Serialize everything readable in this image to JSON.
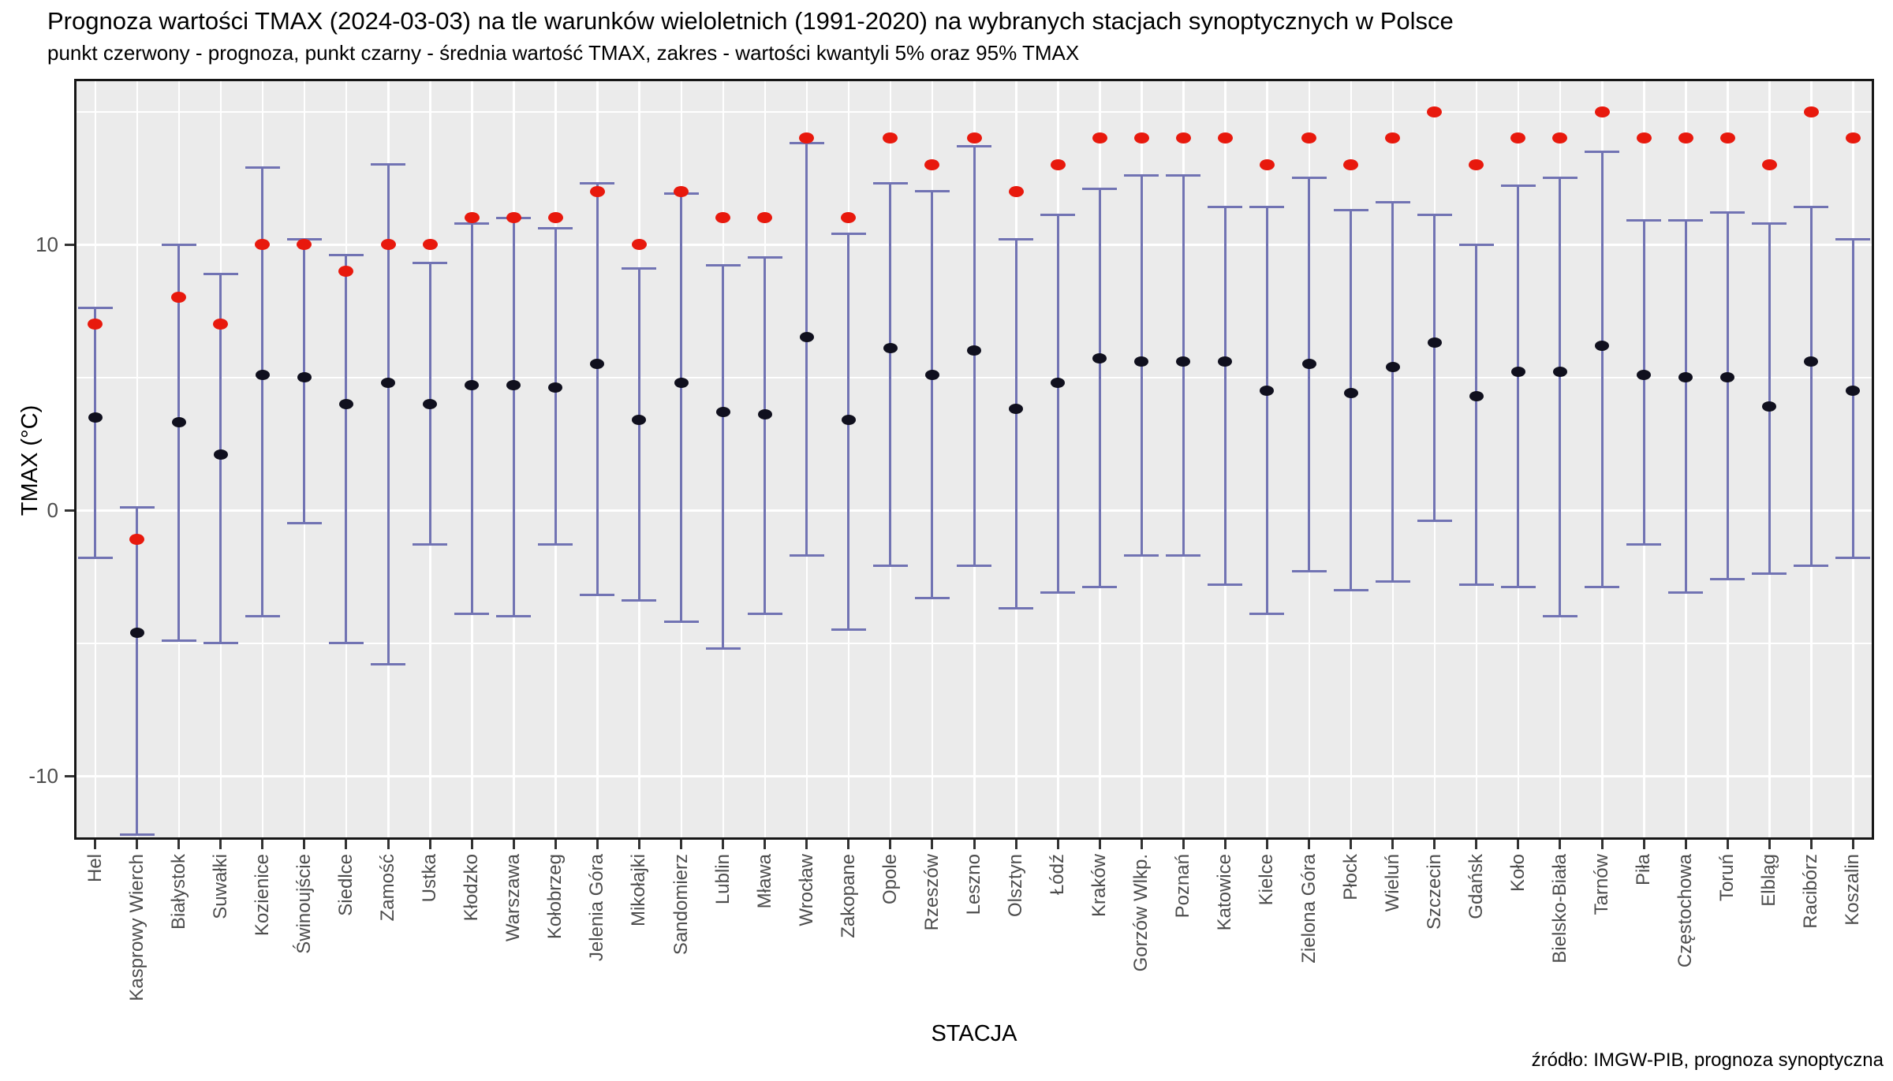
{
  "chart_data": {
    "type": "scatter",
    "variant": "point-range (forecast dot, mean dot, 5%-95% quantile errorbar)",
    "title": "Prognoza wartości TMAX (2024-03-03) na tle warunków wieloletnich (1991-2020) na wybranych stacjach synoptycznych w Polsce",
    "subtitle": "punkt czerwony - prognoza, punkt czarny - średnia wartość TMAX, zakres - wartości kwantyli 5% oraz 95% TMAX",
    "xlabel": "STACJA",
    "ylabel": "TMAX (°C)",
    "caption": "źródło: IMGW-PIB, prognoza synoptyczna",
    "ylim": [
      -13.6,
      16.1
    ],
    "yticks_major": [
      10,
      0,
      -10
    ],
    "yticks_minor": [
      15,
      5,
      -5
    ],
    "grid": "white major+minor horizontal lines and vertical line per station on gray panel",
    "legend_position": "none (legend explained in subtitle)",
    "colors": {
      "forecast_point": "#e8190d",
      "mean_point": "#10101e",
      "range_bar": "#7173b3",
      "panel_background": "#ebebeb",
      "gridline": "#ffffff",
      "tick_label": "#4d4d4d",
      "panel_border": "#161616"
    },
    "categories": [
      "Hel",
      "Kasprowy Wierch",
      "Białystok",
      "Suwałki",
      "Kozienice",
      "Świnoujście",
      "Siedlce",
      "Zamość",
      "Ustka",
      "Kłodzko",
      "Warszawa",
      "Kołobrzeg",
      "Jelenia Góra",
      "Mikołajki",
      "Sandomierz",
      "Lublin",
      "Mława",
      "Wrocław",
      "Zakopane",
      "Opole",
      "Rzeszów",
      "Leszno",
      "Olsztyn",
      "Łódź",
      "Kraków",
      "Gorzów Wlkp.",
      "Poznań",
      "Katowice",
      "Kielce",
      "Zielona Góra",
      "Płock",
      "Wieluń",
      "Szczecin",
      "Gdańsk",
      "Koło",
      "Bielsko-Biała",
      "Tarnów",
      "Piła",
      "Częstochowa",
      "Toruń",
      "Elbląg",
      "Racibórz",
      "Koszalin"
    ],
    "series": [
      {
        "name": "prognoza (punkt czerwony)",
        "role": "forecast",
        "values": [
          7.0,
          -1.1,
          8.0,
          7.0,
          10.0,
          10.0,
          9.0,
          10.0,
          10.0,
          11.0,
          11.0,
          11.0,
          12.0,
          10.0,
          12.0,
          11.0,
          11.0,
          14.0,
          11.0,
          14.0,
          13.0,
          14.0,
          12.0,
          13.0,
          14.0,
          14.0,
          14.0,
          14.0,
          13.0,
          14.0,
          13.0,
          14.0,
          15.0,
          13.0,
          14.0,
          14.0,
          15.0,
          14.0,
          14.0,
          14.0,
          13.0,
          15.0,
          14.0
        ]
      },
      {
        "name": "średnia wartość TMAX (punkt czarny)",
        "role": "mean",
        "values": [
          3.5,
          -4.6,
          3.3,
          2.1,
          5.1,
          5.0,
          4.0,
          4.8,
          4.0,
          4.7,
          4.7,
          4.6,
          5.5,
          3.4,
          4.8,
          3.7,
          3.6,
          6.5,
          3.4,
          6.1,
          5.1,
          6.0,
          3.8,
          4.8,
          5.7,
          5.6,
          5.6,
          5.6,
          4.5,
          5.5,
          4.4,
          5.4,
          6.3,
          4.3,
          5.2,
          5.2,
          6.2,
          5.1,
          5.0,
          5.0,
          3.9,
          5.6,
          4.5
        ]
      },
      {
        "name": "kwantyl 5% TMAX (dolny zakres)",
        "role": "range_low",
        "values": [
          -1.8,
          -12.2,
          -4.9,
          -5.0,
          -4.0,
          -0.5,
          -5.0,
          -5.8,
          -1.3,
          -3.9,
          -4.0,
          -1.3,
          -3.2,
          -3.4,
          -4.2,
          -5.2,
          -3.9,
          -1.7,
          -4.5,
          -2.1,
          -3.3,
          -2.1,
          -3.7,
          -3.1,
          -2.9,
          -1.7,
          -1.7,
          -2.8,
          -3.9,
          -2.3,
          -3.0,
          -2.7,
          -0.4,
          -2.8,
          -2.9,
          -4.0,
          -2.9,
          -1.3,
          -3.1,
          -2.6,
          -2.4,
          -2.1,
          -1.8
        ]
      },
      {
        "name": "kwantyl 95% TMAX (górny zakres)",
        "role": "range_high",
        "values": [
          7.6,
          0.1,
          10.0,
          8.9,
          12.9,
          10.2,
          9.6,
          13.0,
          9.3,
          10.8,
          11.0,
          10.6,
          12.3,
          9.1,
          11.9,
          9.2,
          9.5,
          13.8,
          10.4,
          12.3,
          12.0,
          13.7,
          10.2,
          11.1,
          12.1,
          12.6,
          12.6,
          11.4,
          11.4,
          12.5,
          11.3,
          11.6,
          11.1,
          10.0,
          12.2,
          12.5,
          13.5,
          10.9,
          10.9,
          11.2,
          10.8,
          11.4,
          10.2
        ]
      }
    ]
  }
}
